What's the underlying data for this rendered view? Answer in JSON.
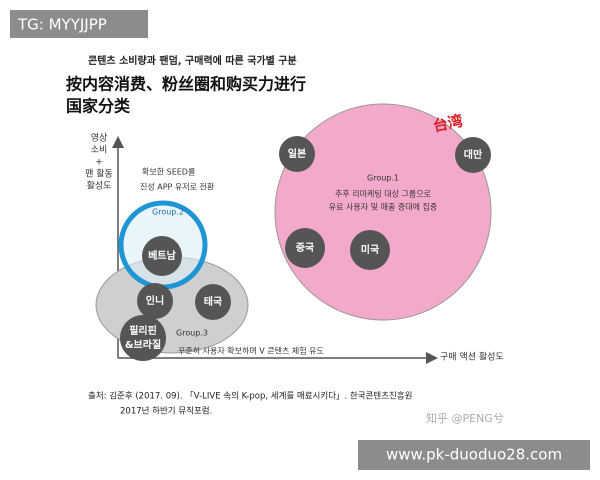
{
  "banner": "TG: MYYJJPP",
  "header": {
    "subtitle": "콘텐츠 소비량과 팬덤, 구매력에 따른 국가별 구분",
    "title_lines": [
      "按内容消费、粉丝圈和购买力进行",
      "国家分类"
    ]
  },
  "y_axis": {
    "label_lines": [
      "영상",
      "소비",
      "+",
      "팬 활동",
      "활성도"
    ]
  },
  "x_axis": {
    "label": "구매 액션 활성도"
  },
  "group2": {
    "note_lines": [
      "확보한 SEED를",
      "진성 APP 유저로 전환"
    ],
    "label": "Group.2",
    "countries": [
      "베트남"
    ]
  },
  "group3": {
    "label": "Group.3",
    "countries": [
      "인니",
      "태국",
      "필리핀",
      "&브라질"
    ],
    "note": "꾸준히 사용자 확보하며 V 콘텐츠 체험 유도"
  },
  "group1": {
    "label": "Group.1",
    "note_lines": [
      "추후 리마케팅 대상 그룹으로",
      "유료 사용자 및 매출 증대에 집중"
    ],
    "countries": [
      "일본",
      "대만",
      "중국",
      "미국"
    ],
    "annotation": "台湾"
  },
  "source": {
    "lines": [
      "출처: 김준후 (2017. 09). 「V-LIVE 속의 K-pop, 세계를 매료시키다」. 한국콘텐츠진흥원",
      "2017년 하반기 뮤직포럼."
    ]
  },
  "watermark": "知乎 @PENG兮",
  "footer_banner": "www.pk-duoduo28.com"
}
